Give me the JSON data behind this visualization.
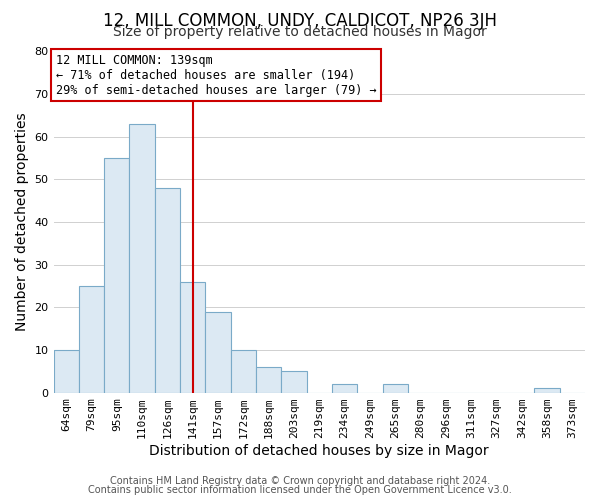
{
  "title": "12, MILL COMMON, UNDY, CALDICOT, NP26 3JH",
  "subtitle": "Size of property relative to detached houses in Magor",
  "xlabel": "Distribution of detached houses by size in Magor",
  "ylabel": "Number of detached properties",
  "categories": [
    "64sqm",
    "79sqm",
    "95sqm",
    "110sqm",
    "126sqm",
    "141sqm",
    "157sqm",
    "172sqm",
    "188sqm",
    "203sqm",
    "219sqm",
    "234sqm",
    "249sqm",
    "265sqm",
    "280sqm",
    "296sqm",
    "311sqm",
    "327sqm",
    "342sqm",
    "358sqm",
    "373sqm"
  ],
  "values": [
    10,
    25,
    55,
    63,
    48,
    26,
    19,
    10,
    6,
    5,
    0,
    2,
    0,
    2,
    0,
    0,
    0,
    0,
    0,
    1,
    0
  ],
  "bar_color": "#dce9f3",
  "bar_edge_color": "#7aaac8",
  "vline_x_index": 5,
  "vline_color": "#cc0000",
  "annotation_title": "12 MILL COMMON: 139sqm",
  "annotation_line1": "← 71% of detached houses are smaller (194)",
  "annotation_line2": "29% of semi-detached houses are larger (79) →",
  "annotation_box_color": "#ffffff",
  "annotation_box_edge_color": "#cc0000",
  "ylim": [
    0,
    80
  ],
  "yticks": [
    0,
    10,
    20,
    30,
    40,
    50,
    60,
    70,
    80
  ],
  "footer1": "Contains HM Land Registry data © Crown copyright and database right 2024.",
  "footer2": "Contains public sector information licensed under the Open Government Licence v3.0.",
  "background_color": "#ffffff",
  "title_fontsize": 12,
  "subtitle_fontsize": 10,
  "axis_label_fontsize": 10,
  "tick_fontsize": 8,
  "annotation_fontsize": 8.5,
  "footer_fontsize": 7
}
